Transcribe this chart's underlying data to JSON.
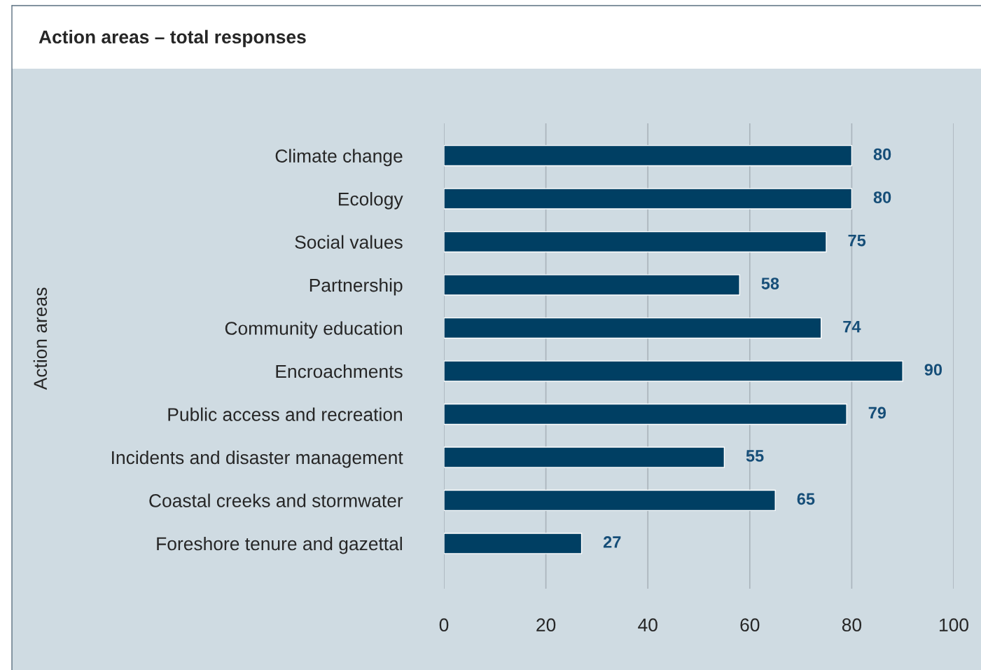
{
  "chart_data": {
    "type": "bar",
    "orientation": "horizontal",
    "title": "Action areas – total responses",
    "ylabel": "Action areas",
    "categories": [
      "Climate change",
      "Ecology",
      "Social values",
      "Partnership",
      "Community education",
      "Encroachments",
      "Public access and recreation",
      "Incidents and disaster management",
      "Coastal creeks and stormwater",
      "Foreshore tenure and gazettal"
    ],
    "values": [
      80,
      80,
      75,
      58,
      74,
      90,
      79,
      55,
      65,
      27
    ],
    "color": "#003f63",
    "xlim": [
      0,
      100
    ],
    "xticks": [
      0,
      20,
      40,
      60,
      80,
      100
    ],
    "grid": "x",
    "data_labels": true,
    "legend": false
  }
}
